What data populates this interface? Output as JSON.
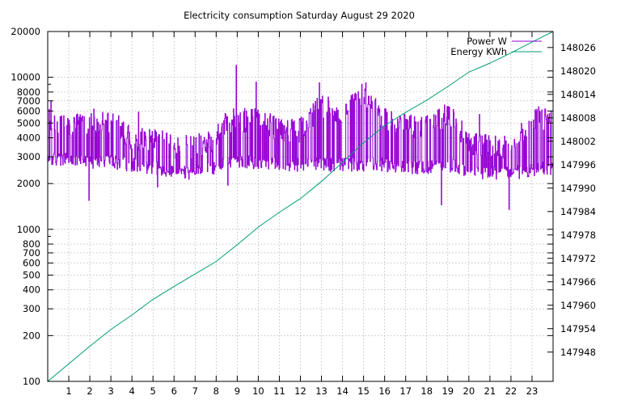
{
  "chart_data": {
    "type": "line",
    "title": "Electricity consumption Saturday August 29 2020",
    "x_ticks": [
      1,
      2,
      3,
      4,
      5,
      6,
      7,
      8,
      9,
      10,
      11,
      12,
      13,
      14,
      15,
      16,
      17,
      18,
      19,
      20,
      21,
      22,
      23
    ],
    "xlim": [
      0,
      24
    ],
    "y_scale": "log",
    "ylim": [
      100,
      20000
    ],
    "y_ticks": [
      {
        "value": 100,
        "label": "100"
      },
      {
        "value": 200,
        "label": "200"
      },
      {
        "value": 300,
        "label": "300"
      },
      {
        "value": 400,
        "label": "400"
      },
      {
        "value": 500,
        "label": "500"
      },
      {
        "value": 600,
        "label": "600"
      },
      {
        "value": 700,
        "label": "700"
      },
      {
        "value": 800,
        "label": "800"
      },
      {
        "value": 1000,
        "label": "1000"
      },
      {
        "value": 2000,
        "label": "2000"
      },
      {
        "value": 3000,
        "label": "3000"
      },
      {
        "value": 4000,
        "label": "4000"
      },
      {
        "value": 5000,
        "label": "5000"
      },
      {
        "value": 6000,
        "label": "6000"
      },
      {
        "value": 7000,
        "label": "7000"
      },
      {
        "value": 8000,
        "label": "8000"
      },
      {
        "value": 10000,
        "label": "10000"
      },
      {
        "value": 20000,
        "label": "20000"
      }
    ],
    "y2_ticks": [
      147948,
      147954,
      147960,
      147966,
      147972,
      147978,
      147984,
      147990,
      147996,
      148002,
      148008,
      148014,
      148020,
      148026
    ],
    "y2lim": [
      147940.5,
      148030.1
    ],
    "grid": true,
    "legend_position": "top-right",
    "series": [
      {
        "name": "Power W",
        "axis": "left",
        "color": "#9400d3",
        "envelope": [
          {
            "x": 0.0,
            "base": 2700,
            "peak": 6000
          },
          {
            "x": 1.0,
            "base": 2700,
            "peak": 5200
          },
          {
            "x": 2.0,
            "base": 2600,
            "peak": 6000
          },
          {
            "x": 3.0,
            "base": 2600,
            "peak": 6000
          },
          {
            "x": 4.0,
            "base": 2500,
            "peak": 4500
          },
          {
            "x": 5.0,
            "base": 2400,
            "peak": 4600
          },
          {
            "x": 6.0,
            "base": 2200,
            "peak": 4000
          },
          {
            "x": 7.0,
            "base": 2200,
            "peak": 4000
          },
          {
            "x": 8.0,
            "base": 2400,
            "peak": 4600
          },
          {
            "x": 8.5,
            "base": 2600,
            "peak": 6000
          },
          {
            "x": 9.0,
            "base": 2600,
            "peak": 6000
          },
          {
            "x": 10.0,
            "base": 2600,
            "peak": 6000
          },
          {
            "x": 11.0,
            "base": 2500,
            "peak": 5200
          },
          {
            "x": 12.0,
            "base": 2500,
            "peak": 5200
          },
          {
            "x": 13.0,
            "base": 2500,
            "peak": 7500
          },
          {
            "x": 14.0,
            "base": 2500,
            "peak": 6500
          },
          {
            "x": 15.0,
            "base": 2500,
            "peak": 9000
          },
          {
            "x": 16.0,
            "base": 2500,
            "peak": 6000
          },
          {
            "x": 17.0,
            "base": 2400,
            "peak": 5500
          },
          {
            "x": 18.0,
            "base": 2400,
            "peak": 5500
          },
          {
            "x": 19.0,
            "base": 2500,
            "peak": 6500
          },
          {
            "x": 20.0,
            "base": 2300,
            "peak": 4200
          },
          {
            "x": 21.0,
            "base": 2200,
            "peak": 4000
          },
          {
            "x": 22.0,
            "base": 2200,
            "peak": 4000
          },
          {
            "x": 23.0,
            "base": 2300,
            "peak": 6000
          },
          {
            "x": 24.0,
            "base": 2400,
            "peak": 6000
          }
        ],
        "spikes": [
          {
            "x": 0.15,
            "value": 7000
          },
          {
            "x": 1.95,
            "value": 1550
          },
          {
            "x": 4.3,
            "value": 5900
          },
          {
            "x": 5.2,
            "value": 1900
          },
          {
            "x": 8.55,
            "value": 1950
          },
          {
            "x": 8.95,
            "value": 12000
          },
          {
            "x": 9.9,
            "value": 9300
          },
          {
            "x": 12.9,
            "value": 9200
          },
          {
            "x": 15.1,
            "value": 9200
          },
          {
            "x": 18.7,
            "value": 1450
          },
          {
            "x": 20.5,
            "value": 5700
          },
          {
            "x": 21.9,
            "value": 1350
          },
          {
            "x": 23.3,
            "value": 6400
          }
        ]
      },
      {
        "name": "Energy KWh",
        "axis": "right",
        "color": "#009e73",
        "points": [
          {
            "x": 0.0,
            "y": 147940.5
          },
          {
            "x": 1.0,
            "y": 147945.0
          },
          {
            "x": 2.0,
            "y": 147949.5
          },
          {
            "x": 3.0,
            "y": 147953.8
          },
          {
            "x": 4.0,
            "y": 147957.5
          },
          {
            "x": 5.0,
            "y": 147961.5
          },
          {
            "x": 6.0,
            "y": 147964.8
          },
          {
            "x": 7.0,
            "y": 147968.0
          },
          {
            "x": 8.0,
            "y": 147971.2
          },
          {
            "x": 9.0,
            "y": 147975.5
          },
          {
            "x": 10.0,
            "y": 147980.0
          },
          {
            "x": 11.0,
            "y": 147983.8
          },
          {
            "x": 12.0,
            "y": 147987.3
          },
          {
            "x": 13.0,
            "y": 147991.7
          },
          {
            "x": 14.0,
            "y": 147996.6
          },
          {
            "x": 15.0,
            "y": 148001.6
          },
          {
            "x": 16.0,
            "y": 148006.0
          },
          {
            "x": 17.0,
            "y": 148009.4
          },
          {
            "x": 18.0,
            "y": 148012.5
          },
          {
            "x": 19.0,
            "y": 148016.0
          },
          {
            "x": 20.0,
            "y": 148019.7
          },
          {
            "x": 21.0,
            "y": 148022.0
          },
          {
            "x": 22.0,
            "y": 148024.6
          },
          {
            "x": 23.0,
            "y": 148027.4
          },
          {
            "x": 24.0,
            "y": 148030.1
          }
        ]
      }
    ]
  }
}
